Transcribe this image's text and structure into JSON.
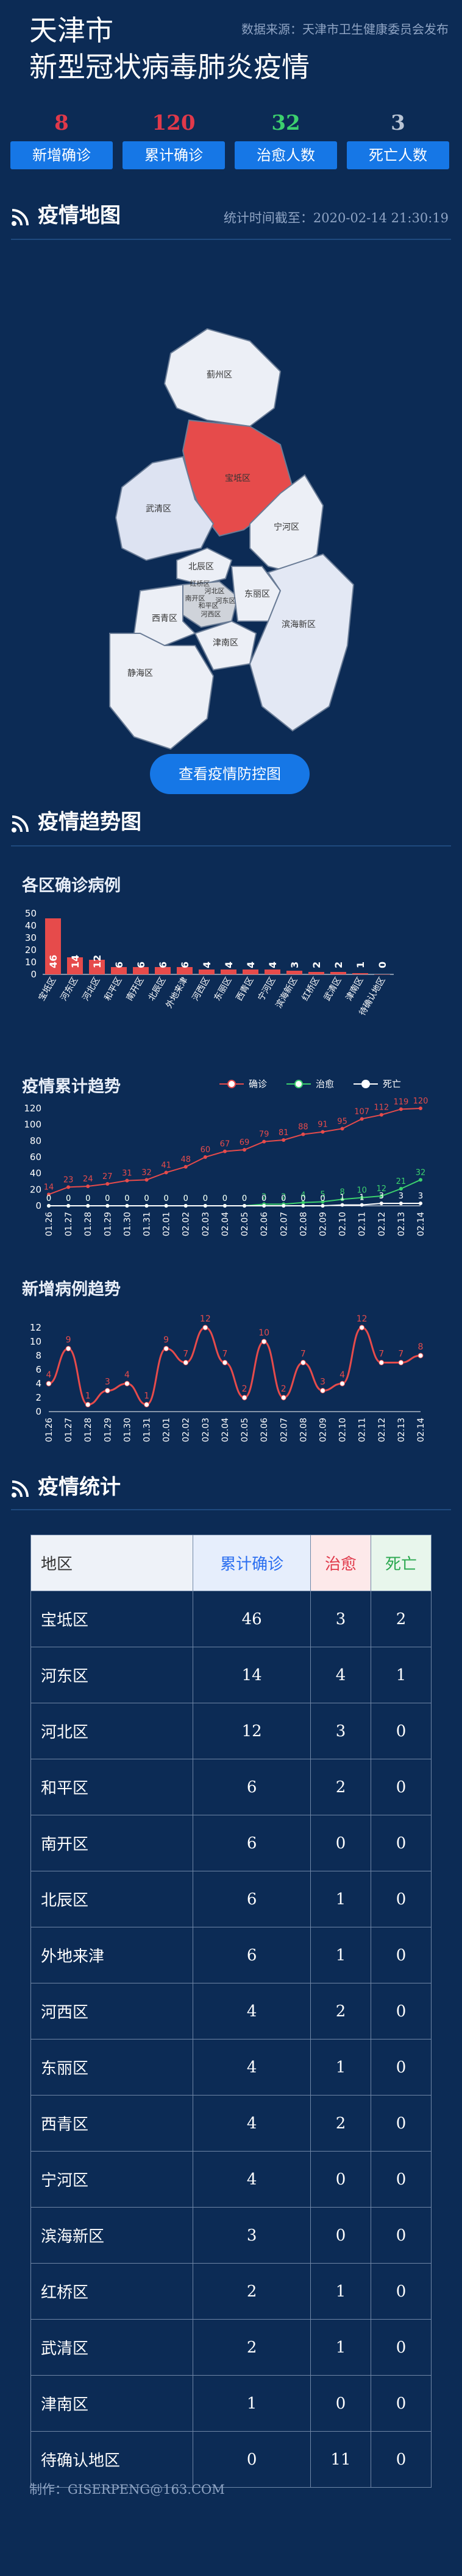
{
  "header": {
    "title_line1": "天津市",
    "title_line2": "新型冠状病毒肺炎疫情",
    "source": "数据来源：天津市卫生健康委员会发布"
  },
  "stats": [
    {
      "value": "8",
      "label": "新增确诊",
      "color": "#e0394a"
    },
    {
      "value": "120",
      "label": "累计确诊",
      "color": "#e0394a"
    },
    {
      "value": "32",
      "label": "治愈人数",
      "color": "#3cd06e"
    },
    {
      "value": "3",
      "label": "死亡人数",
      "color": "#b9c4d4"
    }
  ],
  "map_section": {
    "title": "疫情地图",
    "update_time": "统计时间截至：2020-02-14 21:30:19",
    "button_label": "查看疫情防控图",
    "districts": [
      "蓟州区",
      "宝坻区",
      "武清区",
      "宁河区",
      "北辰区",
      "红桥区",
      "河北区",
      "南开区",
      "河东区",
      "和平区",
      "河西区",
      "西青区",
      "津南区",
      "东丽区",
      "滨海新区",
      "静海区"
    ],
    "highlight_color": "#e64b4b"
  },
  "trend_section": {
    "title": "疫情趋势图"
  },
  "charts": {
    "district_title": "各区确诊病例",
    "cumulative_title": "疫情累计趋势",
    "daily_title": "新增病例趋势"
  },
  "chart_data": [
    {
      "type": "bar",
      "title": "各区确诊病例",
      "categories": [
        "宝坻区",
        "河东区",
        "河北区",
        "和平区",
        "南开区",
        "北辰区",
        "外地来津",
        "河西区",
        "东丽区",
        "西青区",
        "宁河区",
        "滨海新区",
        "红桥区",
        "武清区",
        "津南区",
        "待确认地区"
      ],
      "values": [
        46,
        14,
        12,
        6,
        6,
        6,
        6,
        4,
        4,
        4,
        4,
        3,
        2,
        2,
        1,
        0
      ],
      "ylim": [
        0,
        50
      ],
      "yticks": [
        0,
        10,
        20,
        30,
        40,
        50
      ],
      "color": "#e64b4b"
    },
    {
      "type": "line",
      "title": "疫情累计趋势",
      "x": [
        "01.26",
        "01.27",
        "01.28",
        "01.29",
        "01.30",
        "01.31",
        "02.01",
        "02.02",
        "02.03",
        "02.04",
        "02.05",
        "02.06",
        "02.07",
        "02.08",
        "02.09",
        "02.10",
        "02.11",
        "02.12",
        "02.13",
        "02.14"
      ],
      "series": [
        {
          "name": "确诊",
          "values": [
            14,
            23,
            24,
            27,
            31,
            32,
            41,
            48,
            60,
            67,
            69,
            79,
            81,
            88,
            91,
            95,
            107,
            112,
            119,
            120
          ],
          "color": "#e64b4b"
        },
        {
          "name": "治愈",
          "values": [
            0,
            0,
            0,
            0,
            0,
            0,
            0,
            0,
            0,
            0,
            0,
            2,
            2,
            4,
            5,
            8,
            10,
            12,
            21,
            32
          ],
          "color": "#3cd06e"
        },
        {
          "name": "死亡",
          "values": [
            0,
            0,
            0,
            0,
            0,
            0,
            0,
            0,
            0,
            0,
            0,
            0,
            0,
            0,
            0,
            1,
            1,
            3,
            3,
            3
          ],
          "color": "#ffffff"
        }
      ],
      "ylim": [
        0,
        120
      ],
      "yticks": [
        0,
        20,
        40,
        60,
        80,
        100,
        120
      ],
      "legend": "top-right"
    },
    {
      "type": "line",
      "title": "新增病例趋势",
      "x": [
        "01.26",
        "01.27",
        "01.28",
        "01.29",
        "01.30",
        "01.31",
        "02.01",
        "02.02",
        "02.03",
        "02.04",
        "02.05",
        "02.06",
        "02.07",
        "02.08",
        "02.09",
        "02.10",
        "02.11",
        "02.12",
        "02.13",
        "02.14"
      ],
      "series": [
        {
          "name": "新增",
          "values": [
            4,
            9,
            1,
            3,
            4,
            1,
            9,
            7,
            12,
            7,
            2,
            10,
            2,
            7,
            3,
            4,
            12,
            7,
            7,
            8
          ],
          "color": "#e64b4b"
        }
      ],
      "ylim": [
        0,
        12
      ],
      "yticks": [
        0,
        2,
        4,
        6,
        8,
        10,
        12
      ]
    }
  ],
  "table_section": {
    "title": "疫情统计",
    "headers": [
      "地区",
      "累计确诊",
      "治愈",
      "死亡"
    ],
    "header_colors": {
      "bg0": "#eef2f8",
      "bg1": "#e6eefc",
      "bg2": "#fde9ea",
      "bg3": "#e8f6ec",
      "fg0": "#333333",
      "fg1": "#2a6ef0",
      "fg2": "#e0394a",
      "fg3": "#2aa84f"
    },
    "rows": [
      {
        "name": "宝坻区",
        "confirmed": "46",
        "cured": "3",
        "dead": "2"
      },
      {
        "name": "河东区",
        "confirmed": "14",
        "cured": "4",
        "dead": "1"
      },
      {
        "name": "河北区",
        "confirmed": "12",
        "cured": "3",
        "dead": "0"
      },
      {
        "name": "和平区",
        "confirmed": "6",
        "cured": "2",
        "dead": "0"
      },
      {
        "name": "南开区",
        "confirmed": "6",
        "cured": "0",
        "dead": "0"
      },
      {
        "name": "北辰区",
        "confirmed": "6",
        "cured": "1",
        "dead": "0"
      },
      {
        "name": "外地来津",
        "confirmed": "6",
        "cured": "1",
        "dead": "0"
      },
      {
        "name": "河西区",
        "confirmed": "4",
        "cured": "2",
        "dead": "0"
      },
      {
        "name": "东丽区",
        "confirmed": "4",
        "cured": "1",
        "dead": "0"
      },
      {
        "name": "西青区",
        "confirmed": "4",
        "cured": "2",
        "dead": "0"
      },
      {
        "name": "宁河区",
        "confirmed": "4",
        "cured": "0",
        "dead": "0"
      },
      {
        "name": "滨海新区",
        "confirmed": "3",
        "cured": "0",
        "dead": "0"
      },
      {
        "name": "红桥区",
        "confirmed": "2",
        "cured": "1",
        "dead": "0"
      },
      {
        "name": "武清区",
        "confirmed": "2",
        "cured": "1",
        "dead": "0"
      },
      {
        "name": "津南区",
        "confirmed": "1",
        "cured": "0",
        "dead": "0"
      },
      {
        "name": "待确认地区",
        "confirmed": "0",
        "cured": "11",
        "dead": "0"
      }
    ]
  },
  "footer": {
    "credit": "制作：GISERPENG@163.COM"
  }
}
